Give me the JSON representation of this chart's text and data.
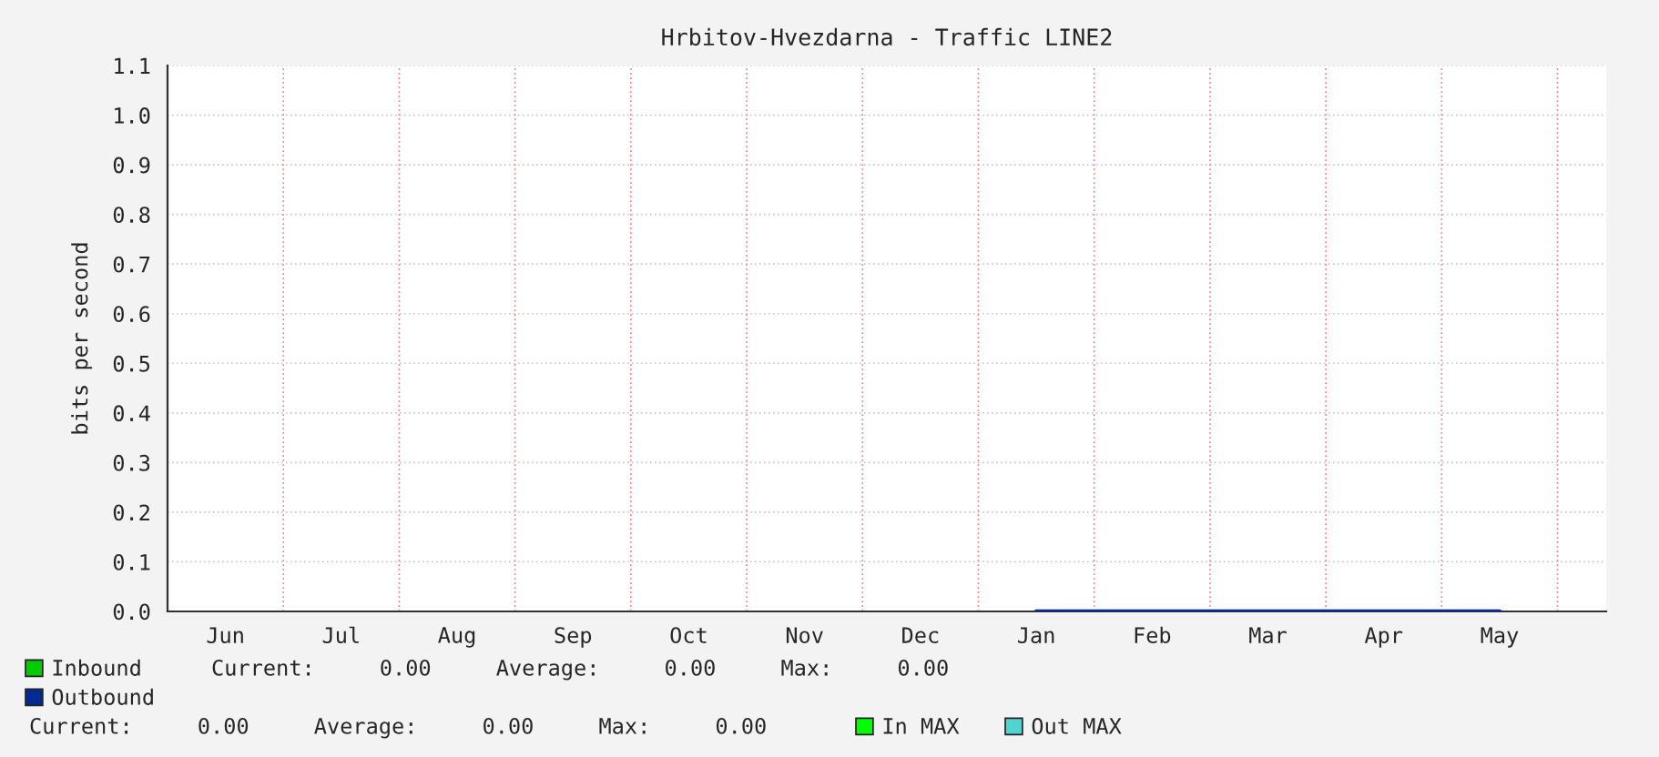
{
  "chart_data": {
    "type": "line",
    "title": "Hrbitov-Hvezdarna - Traffic LINE2",
    "ylabel": "bits per second",
    "categories": [
      "Jun",
      "Jul",
      "Aug",
      "Sep",
      "Oct",
      "Nov",
      "Dec",
      "Jan",
      "Feb",
      "Mar",
      "Apr",
      "May"
    ],
    "series": [
      {
        "name": "Inbound",
        "color": "#00cc00",
        "values": [
          null,
          null,
          null,
          null,
          null,
          null,
          null,
          null,
          null,
          null,
          null,
          null
        ]
      },
      {
        "name": "Outbound",
        "color": "#002a97",
        "values": [
          null,
          null,
          null,
          null,
          null,
          null,
          null,
          0,
          0,
          0,
          0,
          0
        ]
      },
      {
        "name": "In MAX",
        "color": "#00ff00",
        "values": [
          null,
          null,
          null,
          null,
          null,
          null,
          null,
          null,
          null,
          null,
          null,
          null
        ]
      },
      {
        "name": "Out MAX",
        "color": "#4fd3d3",
        "values": [
          null,
          null,
          null,
          null,
          null,
          null,
          null,
          null,
          null,
          null,
          null,
          null
        ]
      }
    ],
    "ylim": [
      0,
      1.1
    ],
    "yticks": [
      {
        "value": 0,
        "label": "0.0"
      },
      {
        "value": 0.1,
        "label": "0.1"
      },
      {
        "value": 0.2,
        "label": "0.2"
      },
      {
        "value": 0.3,
        "label": "0.3"
      },
      {
        "value": 0.4,
        "label": "0.4"
      },
      {
        "value": 0.5,
        "label": "0.5"
      },
      {
        "value": 0.6,
        "label": "0.6"
      },
      {
        "value": 0.7,
        "label": "0.7"
      },
      {
        "value": 0.8,
        "label": "0.8"
      },
      {
        "value": 0.9,
        "label": "0.9"
      },
      {
        "value": 1.0,
        "label": "1.0"
      },
      {
        "value": 1.1,
        "label": "1.1"
      }
    ],
    "annotations": [
      "Current:     0.00     Average:     0.00     Max:     0.00",
      "Current:     0.00     Average:     0.00     Max:     0.00"
    ],
    "grid": true,
    "legend": "bottom",
    "marker": "none",
    "line_style": "solid"
  }
}
